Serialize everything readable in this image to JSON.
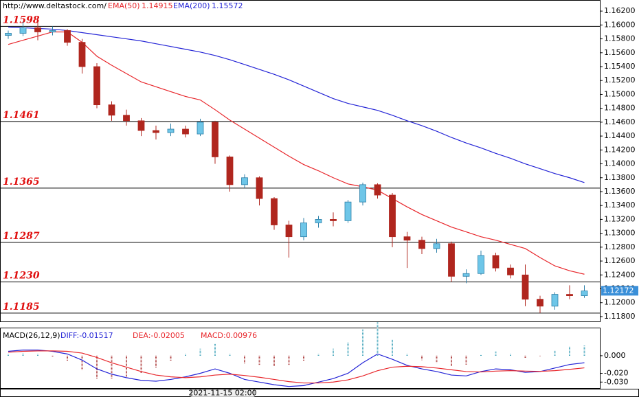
{
  "chart_data": [
    {
      "type": "candlestick",
      "source": "http://www.deltastock.com/",
      "open": [
        1.1585,
        1.1588,
        1.1596,
        1.159,
        1.1592,
        1.1575,
        1.154,
        1.1485,
        1.147,
        1.1462,
        1.1448,
        1.1445,
        1.145,
        1.1443,
        1.146,
        1.141,
        1.137,
        1.138,
        1.135,
        1.1312,
        1.1295,
        1.1315,
        1.132,
        1.1318,
        1.1345,
        1.137,
        1.1355,
        1.1295,
        1.129,
        1.1278,
        1.1285,
        1.1238,
        1.1242,
        1.1268,
        1.125,
        1.124,
        1.1205,
        1.1195,
        1.1212,
        1.121
      ],
      "high": [
        1.1592,
        1.1605,
        1.1606,
        1.1598,
        1.1594,
        1.158,
        1.1545,
        1.149,
        1.1478,
        1.1466,
        1.1455,
        1.1458,
        1.1455,
        1.1465,
        1.1462,
        1.1412,
        1.1385,
        1.1382,
        1.1352,
        1.1318,
        1.1322,
        1.1325,
        1.133,
        1.1348,
        1.1373,
        1.1372,
        1.1358,
        1.1302,
        1.1295,
        1.1292,
        1.1288,
        1.1248,
        1.1275,
        1.1272,
        1.1255,
        1.1255,
        1.121,
        1.1215,
        1.1225,
        1.1225
      ],
      "low": [
        1.158,
        1.1584,
        1.1578,
        1.1585,
        1.157,
        1.153,
        1.148,
        1.1462,
        1.1455,
        1.144,
        1.1435,
        1.144,
        1.1438,
        1.144,
        1.14,
        1.136,
        1.1365,
        1.134,
        1.1305,
        1.1265,
        1.129,
        1.1308,
        1.131,
        1.1315,
        1.134,
        1.135,
        1.128,
        1.125,
        1.127,
        1.1272,
        1.123,
        1.1228,
        1.124,
        1.1245,
        1.1235,
        1.1195,
        1.1185,
        1.119,
        1.1205,
        1.1207
      ],
      "close": [
        1.1588,
        1.1596,
        1.159,
        1.1592,
        1.1575,
        1.154,
        1.1485,
        1.147,
        1.1462,
        1.1448,
        1.1445,
        1.145,
        1.1443,
        1.146,
        1.141,
        1.137,
        1.138,
        1.135,
        1.1312,
        1.1295,
        1.1315,
        1.132,
        1.1318,
        1.1345,
        1.137,
        1.1355,
        1.1295,
        1.129,
        1.1278,
        1.1285,
        1.1238,
        1.1242,
        1.1268,
        1.125,
        1.124,
        1.1205,
        1.1195,
        1.1212,
        1.121,
        1.1217
      ],
      "up_color": "#6ec6e8",
      "down_color": "#b0261e",
      "series": [
        {
          "name": "EMA(50)",
          "legend_value": "1.14915",
          "color": "#e8262b",
          "values": [
            1.1572,
            1.1578,
            1.1584,
            1.159,
            1.159,
            1.1575,
            1.1555,
            1.1542,
            1.153,
            1.1518,
            1.1511,
            1.1504,
            1.1497,
            1.1492,
            1.1478,
            1.1463,
            1.145,
            1.1437,
            1.1424,
            1.1411,
            1.1399,
            1.139,
            1.138,
            1.1371,
            1.1367,
            1.1362,
            1.135,
            1.1338,
            1.1327,
            1.1318,
            1.1309,
            1.1302,
            1.1295,
            1.129,
            1.1284,
            1.1278,
            1.1265,
            1.1253,
            1.1246,
            1.1241
          ]
        },
        {
          "name": "EMA(200)",
          "legend_value": "1.15572",
          "color": "#2323d6",
          "values": [
            1.1597,
            1.1596,
            1.1595,
            1.1594,
            1.1592,
            1.1589,
            1.1586,
            1.1583,
            1.158,
            1.1577,
            1.1573,
            1.1569,
            1.1565,
            1.1561,
            1.1556,
            1.155,
            1.1543,
            1.1536,
            1.1529,
            1.1521,
            1.1512,
            1.1503,
            1.1494,
            1.1487,
            1.1482,
            1.1477,
            1.147,
            1.1462,
            1.1455,
            1.1447,
            1.1438,
            1.143,
            1.1423,
            1.1415,
            1.1408,
            1.14,
            1.1393,
            1.1386,
            1.138,
            1.1373
          ]
        }
      ],
      "levels": [
        {
          "value": 1.1598,
          "label": "1.1598"
        },
        {
          "value": 1.1461,
          "label": "1.1461"
        },
        {
          "value": 1.1365,
          "label": "1.1365"
        },
        {
          "value": 1.1287,
          "label": "1.1287"
        },
        {
          "value": 1.123,
          "label": "1.1230"
        },
        {
          "value": 1.1185,
          "label": "1.1185"
        }
      ],
      "last_price": 1.12172,
      "ylim": [
        1.1173,
        1.1633
      ],
      "yticks": [
        {
          "value": 1.162,
          "label": "1.16200"
        },
        {
          "value": 1.16,
          "label": "1.16000"
        },
        {
          "value": 1.158,
          "label": "1.15800"
        },
        {
          "value": 1.156,
          "label": "1.15600"
        },
        {
          "value": 1.154,
          "label": "1.15400"
        },
        {
          "value": 1.152,
          "label": "1.15200"
        },
        {
          "value": 1.15,
          "label": "1.15000"
        },
        {
          "value": 1.148,
          "label": "1.14800"
        },
        {
          "value": 1.146,
          "label": "1.14600"
        },
        {
          "value": 1.144,
          "label": "1.14400"
        },
        {
          "value": 1.142,
          "label": "1.14200"
        },
        {
          "value": 1.14,
          "label": "1.14000"
        },
        {
          "value": 1.138,
          "label": "1.13800"
        },
        {
          "value": 1.136,
          "label": "1.13600"
        },
        {
          "value": 1.134,
          "label": "1.13400"
        },
        {
          "value": 1.132,
          "label": "1.13200"
        },
        {
          "value": 1.13,
          "label": "1.13000"
        },
        {
          "value": 1.128,
          "label": "1.12800"
        },
        {
          "value": 1.126,
          "label": "1.12600"
        },
        {
          "value": 1.124,
          "label": "1.12400"
        },
        {
          "value": 1.122,
          "label": "1.12200"
        },
        {
          "value": 1.12,
          "label": "1.12000"
        },
        {
          "value": 1.118,
          "label": "1.11800"
        }
      ],
      "cursor_time": "2021-11-15 02:00"
    },
    {
      "type": "macd",
      "title": "MACD(26,12,9)",
      "series": [
        {
          "label": "DIFF:-0.01517",
          "color": "#2323d6",
          "values": [
            0.005,
            0.0065,
            0.0065,
            0.005,
            0.002,
            -0.005,
            -0.015,
            -0.021,
            -0.025,
            -0.028,
            -0.029,
            -0.027,
            -0.024,
            -0.02,
            -0.015,
            -0.02,
            -0.027,
            -0.03,
            -0.033,
            -0.035,
            -0.034,
            -0.03,
            -0.026,
            -0.02,
            -0.008,
            0.002,
            -0.004,
            -0.011,
            -0.015,
            -0.018,
            -0.022,
            -0.023,
            -0.018,
            -0.015,
            -0.016,
            -0.019,
            -0.018,
            -0.014,
            -0.01,
            -0.008
          ]
        },
        {
          "label": "DEA:-0.02005",
          "color": "#e8262b",
          "values": [
            0.004,
            0.005,
            0.0055,
            0.0055,
            0.005,
            0.003,
            -0.002,
            -0.008,
            -0.013,
            -0.018,
            -0.022,
            -0.024,
            -0.025,
            -0.024,
            -0.022,
            -0.021,
            -0.0225,
            -0.0245,
            -0.027,
            -0.0295,
            -0.031,
            -0.031,
            -0.03,
            -0.0275,
            -0.023,
            -0.017,
            -0.013,
            -0.012,
            -0.0125,
            -0.014,
            -0.016,
            -0.018,
            -0.0185,
            -0.0175,
            -0.017,
            -0.0175,
            -0.0178,
            -0.017,
            -0.0155,
            -0.0138
          ]
        },
        {
          "label": "MACD:0.00976",
          "color": "#3aa0b8",
          "down_color": "#a83030",
          "histogram": true,
          "values": [
            0.002,
            0.003,
            0.002,
            -0.001,
            -0.006,
            -0.016,
            -0.026,
            -0.026,
            -0.024,
            -0.02,
            -0.014,
            -0.006,
            0.002,
            0.008,
            0.014,
            0.002,
            -0.009,
            -0.011,
            -0.012,
            -0.011,
            -0.006,
            0.002,
            0.008,
            0.015,
            0.03,
            0.038,
            0.018,
            0.002,
            -0.005,
            -0.008,
            -0.012,
            -0.01,
            0.001,
            0.005,
            0.002,
            -0.003,
            -0.0004,
            0.006,
            0.011,
            0.0116
          ]
        }
      ],
      "ylim": [
        -0.0376,
        0.0312
      ],
      "yticks": [
        {
          "value": 0,
          "label": "0.000"
        },
        {
          "value": -0.02,
          "label": "-0.020"
        },
        {
          "value": -0.03,
          "label": "-0.030"
        }
      ]
    }
  ]
}
